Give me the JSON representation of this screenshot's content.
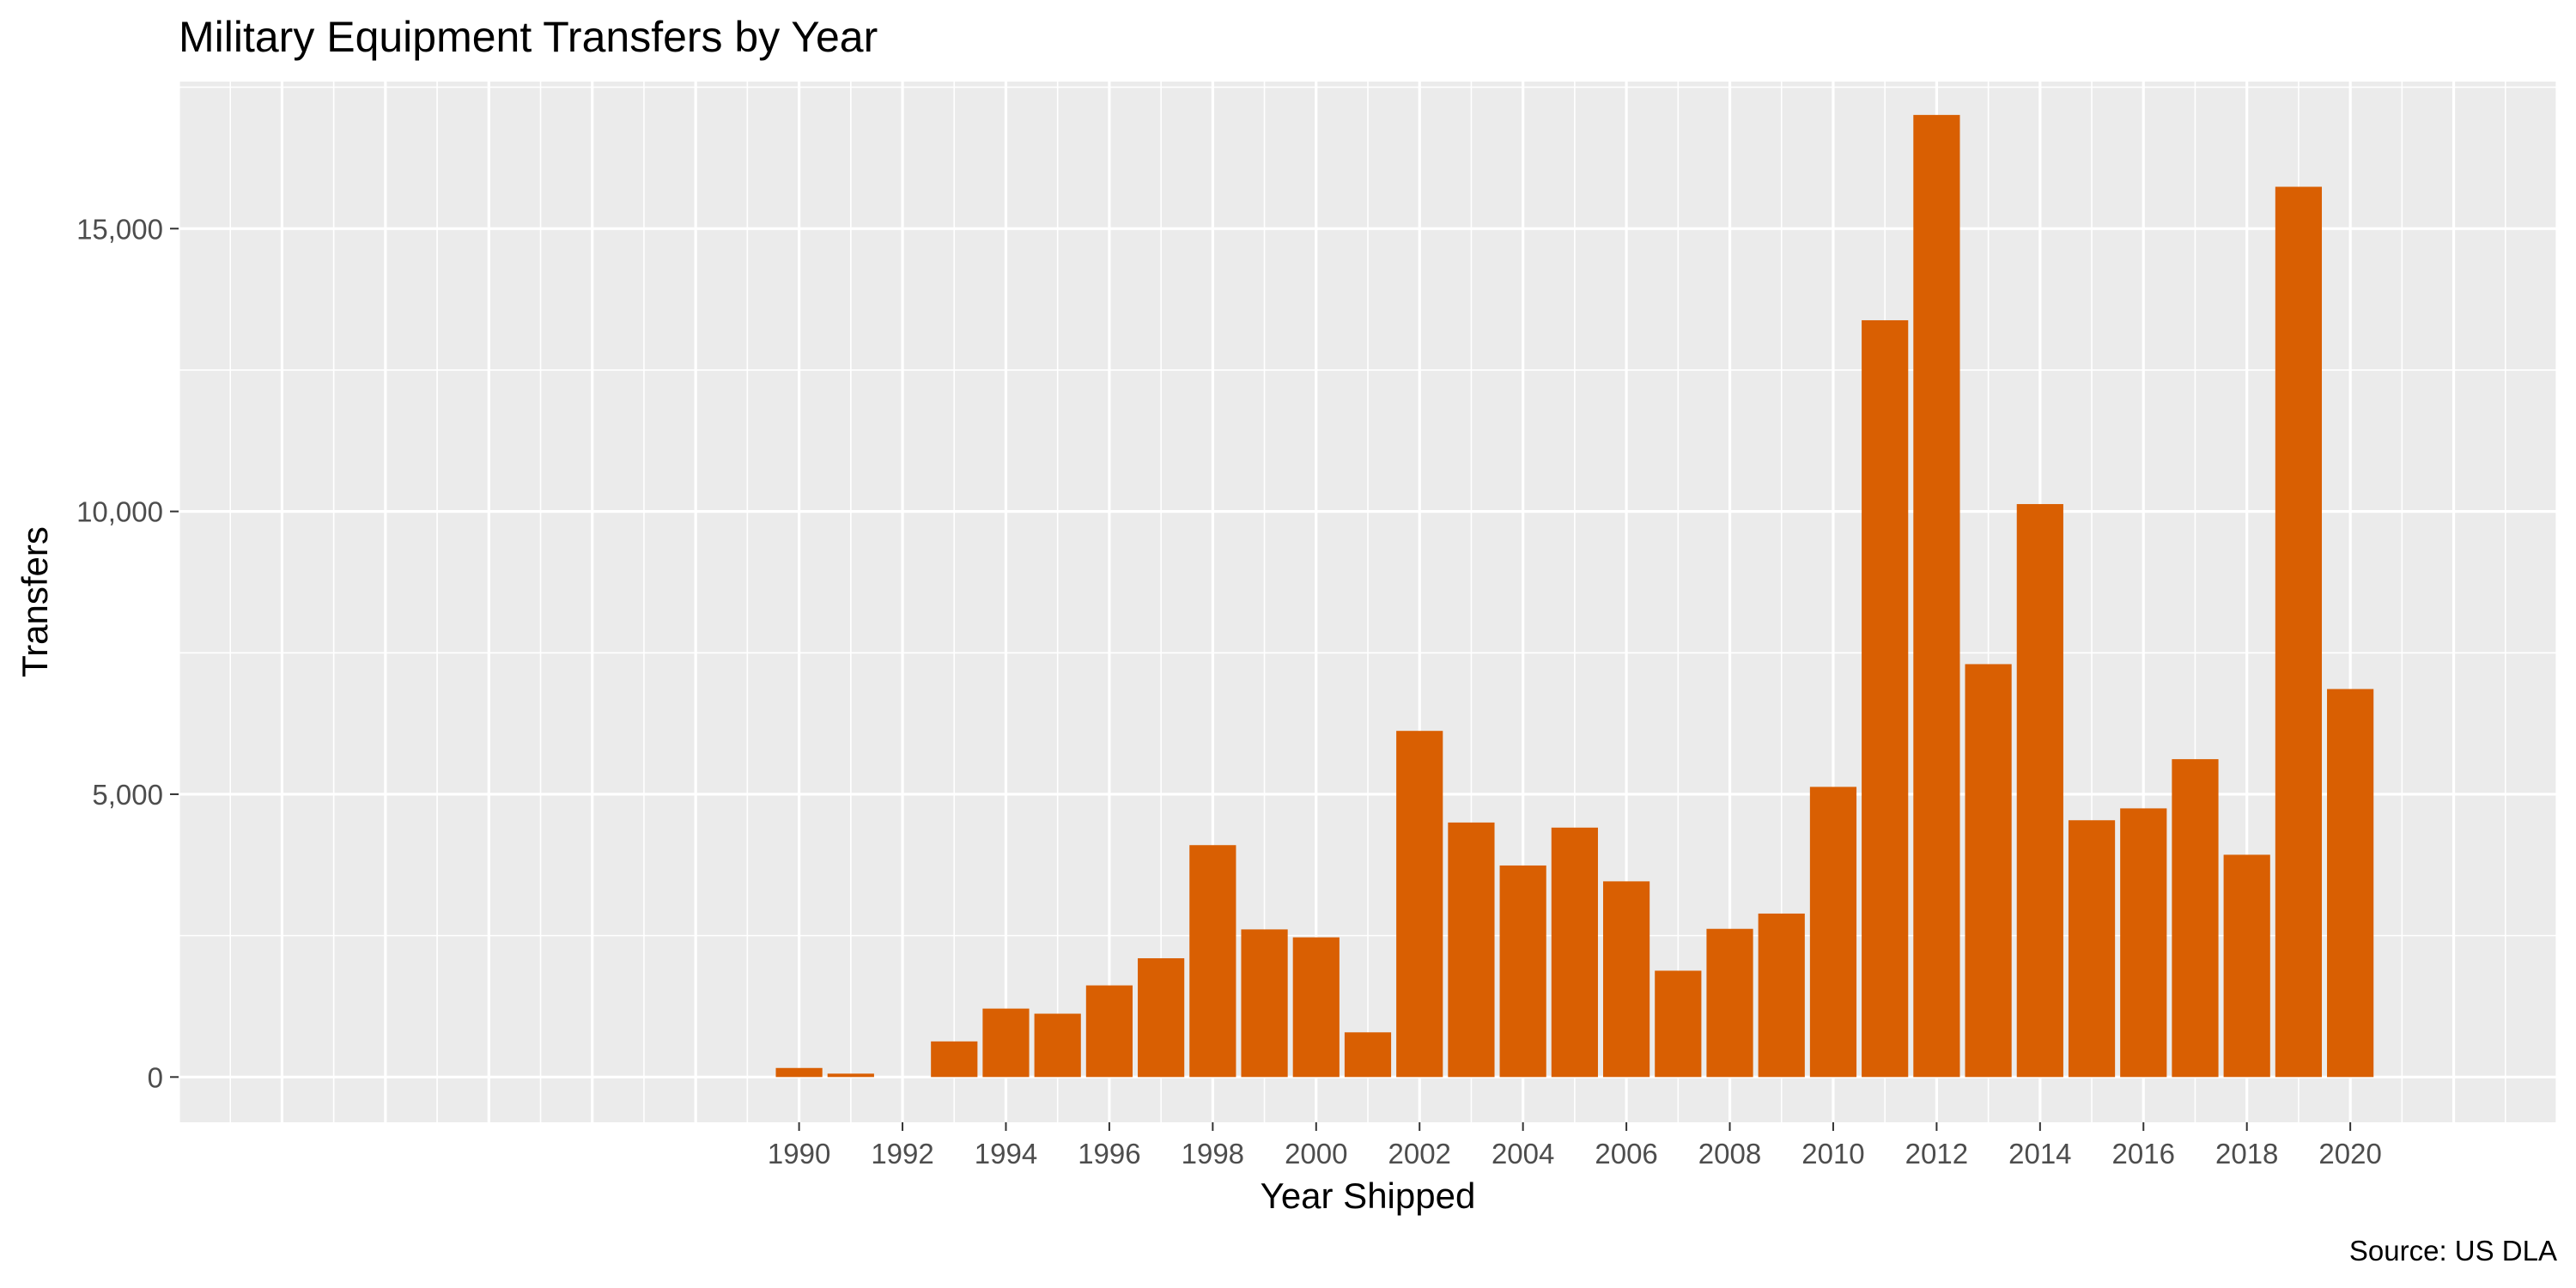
{
  "chart_data": {
    "type": "bar",
    "title": "Military Equipment Transfers by Year",
    "xlabel": "Year Shipped",
    "ylabel": "Transfers",
    "caption": "Source: US DLA",
    "xlim": [
      1978,
      2024
    ],
    "ylim": [
      -800,
      17600
    ],
    "x_ticks": [
      1990,
      1992,
      1994,
      1996,
      1998,
      2000,
      2002,
      2004,
      2006,
      2008,
      2010,
      2012,
      2014,
      2016,
      2018,
      2020
    ],
    "y_ticks": [
      0,
      5000,
      10000,
      15000
    ],
    "y_tick_labels": [
      "0",
      "5,000",
      "10,000",
      "15,000"
    ],
    "grid": true,
    "bar_color": "#D95F02",
    "panel_background": "#EBEBEB",
    "grid_color": "#FFFFFF",
    "categories": [
      1990,
      1991,
      1992,
      1993,
      1994,
      1995,
      1996,
      1997,
      1998,
      1999,
      2000,
      2001,
      2002,
      2003,
      2004,
      2005,
      2006,
      2007,
      2008,
      2009,
      2010,
      2011,
      2012,
      2013,
      2014,
      2015,
      2016,
      2017,
      2018,
      2019,
      2020
    ],
    "values": [
      160,
      60,
      0,
      630,
      1210,
      1120,
      1620,
      2100,
      4100,
      2610,
      2470,
      790,
      6120,
      4500,
      3740,
      4410,
      3460,
      1880,
      2620,
      2890,
      5130,
      13380,
      17010,
      7300,
      10130,
      4540,
      4750,
      5620,
      3930,
      15740,
      6860
    ]
  }
}
